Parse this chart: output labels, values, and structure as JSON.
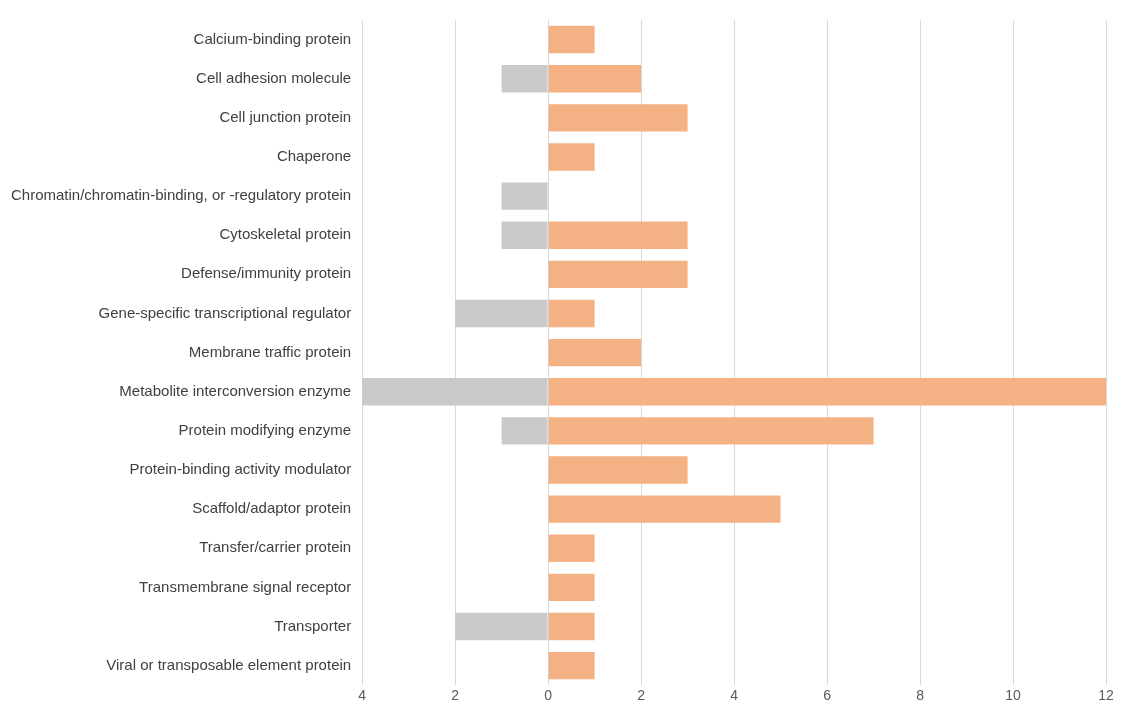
{
  "chart_data": {
    "type": "bar",
    "orientation": "horizontal",
    "stacked": true,
    "categories": [
      "Calcium-binding protein",
      "Cell adhesion molecule",
      "Cell junction protein",
      "Chaperone",
      "Chromatin/chromatin-binding, or -regulatory protein",
      "Cytoskeletal protein",
      "Defense/immunity protein",
      "Gene-specific transcriptional regulator",
      "Membrane traffic protein",
      "Metabolite interconversion enzyme",
      "Protein modifying enzyme",
      "Protein-binding activity modulator",
      "Scaffold/adaptor protein",
      "Transfer/carrier protein",
      "Transmembrane signal receptor",
      "Transporter",
      "Viral or transposable element protein"
    ],
    "series": [
      {
        "color": "#c9c9c9",
        "values": [
          null,
          -1,
          null,
          null,
          -1,
          -1,
          null,
          -2,
          null,
          -4,
          -1,
          null,
          null,
          null,
          null,
          -2,
          null
        ]
      },
      {
        "color": "#f4b183",
        "values": [
          1,
          2,
          3,
          1,
          null,
          3,
          3,
          1,
          2,
          12,
          7,
          3,
          5,
          1,
          1,
          1,
          1
        ]
      }
    ],
    "xlim": [
      -4,
      12
    ],
    "xticks": [
      {
        "value": -4,
        "label": "4"
      },
      {
        "value": -2,
        "label": "2"
      },
      0,
      2,
      4,
      6,
      8,
      10,
      12
    ],
    "grid": "x"
  }
}
